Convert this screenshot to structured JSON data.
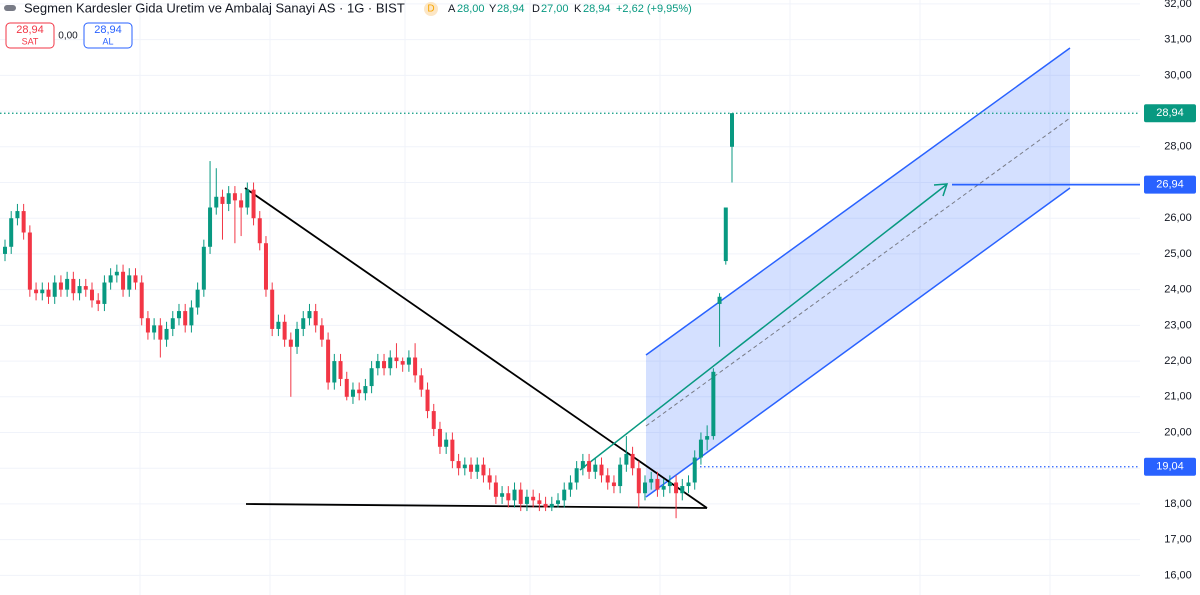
{
  "chart_data": {
    "type": "candlestick",
    "title": "Segmen Kardesler Gida Uretim ve Ambalaj Sanayi AS · 1G · BIST",
    "badge": "D",
    "ohlc_header": [
      {
        "key": "A",
        "value": "28,00"
      },
      {
        "key": "Y",
        "value": "28,94"
      },
      {
        "key": "D",
        "value": "27,00"
      },
      {
        "key": "K",
        "value": "28,94"
      }
    ],
    "change": "+2,62 (+9,95%)",
    "sell": {
      "price": "28,94",
      "label": "SAT"
    },
    "spread": "0,00",
    "buy": {
      "price": "28,94",
      "label": "AL"
    },
    "up_color": "#089981",
    "down_color": "#f23645",
    "ylim": [
      15.45,
      32.11
    ],
    "yticks": [
      {
        "value": 16,
        "label": "16,00"
      },
      {
        "value": 17,
        "label": "17,00"
      },
      {
        "value": 18,
        "label": "18,00"
      },
      {
        "value": 19,
        "label": "19,00"
      },
      {
        "value": 20,
        "label": "20,00"
      },
      {
        "value": 21,
        "label": "21,00"
      },
      {
        "value": 22,
        "label": "22,00"
      },
      {
        "value": 23,
        "label": "23,00"
      },
      {
        "value": 24,
        "label": "24,00"
      },
      {
        "value": 25,
        "label": "25,00"
      },
      {
        "value": 26,
        "label": "26,00"
      },
      {
        "value": 27,
        "label": "27,00"
      },
      {
        "value": 28,
        "label": "28,00"
      },
      {
        "value": 29,
        "label": "29,00"
      },
      {
        "value": 30,
        "label": "30,00"
      },
      {
        "value": 31,
        "label": "31,00"
      },
      {
        "value": 32,
        "label": "32,00"
      }
    ],
    "grid": true,
    "price_lines": [
      {
        "value": 28.94,
        "label": "28,94",
        "color": "#089981"
      },
      {
        "value": 26.94,
        "label": "26,94",
        "color": "#2962ff"
      },
      {
        "value": 19.04,
        "label": "19,04",
        "color": "#2962ff"
      }
    ],
    "open": [
      25.0,
      25.2,
      26.0,
      26.2,
      25.6,
      24.0,
      23.9,
      24.0,
      23.8,
      24.2,
      24.0,
      24.3,
      23.9,
      24.1,
      24.0,
      23.7,
      23.6,
      24.2,
      24.4,
      24.5,
      24.0,
      24.4,
      24.2,
      23.2,
      22.8,
      23.0,
      22.6,
      22.9,
      23.2,
      23.4,
      23.0,
      23.5,
      24.0,
      25.2,
      26.3,
      26.6,
      26.4,
      26.7,
      26.5,
      26.3,
      26.8,
      26.0,
      25.3,
      24.0,
      22.9,
      23.1,
      22.6,
      22.4,
      22.9,
      23.2,
      23.4,
      23.0,
      22.6,
      21.4,
      22.0,
      21.5,
      21.0,
      21.2,
      21.1,
      21.3,
      21.8,
      22.0,
      21.8,
      22.1,
      22.0,
      21.9,
      22.1,
      21.6,
      21.2,
      20.6,
      20.1,
      19.6,
      19.8,
      19.2,
      19.0,
      19.1,
      18.9,
      19.1,
      18.8,
      18.6,
      18.2,
      18.3,
      18.1,
      18.4,
      18.0,
      18.2,
      18.1,
      18.0,
      17.9,
      18.0,
      18.1,
      18.4,
      18.6,
      19.0,
      19.2,
      18.9,
      19.1,
      18.8,
      18.6,
      18.5,
      19.1,
      19.4,
      19.0,
      18.3,
      18.6,
      18.7,
      18.4,
      18.5,
      18.6,
      18.3,
      18.5,
      18.6,
      19.3,
      19.8,
      19.9,
      23.6,
      24.8,
      28.0
    ],
    "high": [
      25.4,
      26.2,
      26.4,
      26.4,
      25.8,
      24.2,
      24.2,
      24.2,
      24.4,
      24.4,
      24.5,
      24.5,
      24.3,
      24.3,
      24.2,
      23.9,
      24.4,
      24.6,
      24.7,
      24.7,
      24.6,
      24.6,
      24.4,
      23.4,
      23.2,
      23.2,
      23.1,
      23.4,
      23.6,
      23.6,
      23.7,
      24.2,
      25.4,
      27.6,
      27.4,
      26.8,
      26.9,
      26.9,
      26.7,
      27.0,
      27.0,
      26.2,
      25.5,
      24.2,
      23.3,
      23.3,
      22.8,
      23.1,
      23.4,
      23.6,
      23.6,
      23.2,
      22.8,
      22.2,
      22.2,
      21.7,
      21.4,
      21.4,
      21.5,
      22.0,
      22.2,
      22.2,
      22.3,
      22.5,
      22.1,
      22.3,
      22.5,
      21.8,
      21.4,
      20.8,
      20.3,
      20.0,
      20.0,
      19.4,
      19.3,
      19.3,
      19.3,
      19.3,
      19.0,
      18.8,
      18.5,
      18.5,
      18.6,
      18.6,
      18.4,
      18.4,
      18.3,
      18.2,
      18.2,
      18.3,
      18.6,
      18.8,
      19.2,
      19.4,
      19.4,
      19.3,
      19.3,
      19.0,
      18.8,
      19.3,
      19.9,
      19.6,
      19.2,
      18.8,
      18.9,
      18.9,
      18.7,
      18.8,
      18.8,
      18.7,
      18.8,
      19.5,
      20.0,
      20.2,
      21.8,
      23.9,
      26.3,
      28.94
    ],
    "low": [
      24.8,
      25.0,
      25.8,
      25.4,
      23.8,
      23.7,
      23.7,
      23.6,
      23.6,
      23.8,
      23.8,
      23.7,
      23.7,
      23.8,
      23.5,
      23.4,
      23.4,
      24.0,
      24.2,
      23.8,
      23.8,
      24.0,
      23.0,
      22.6,
      22.6,
      22.1,
      22.4,
      22.7,
      23.0,
      22.8,
      22.8,
      23.3,
      23.8,
      25.0,
      26.1,
      25.4,
      26.2,
      25.3,
      25.5,
      26.1,
      25.8,
      25.1,
      23.8,
      22.7,
      22.7,
      22.4,
      21.0,
      22.2,
      22.7,
      23.0,
      22.8,
      22.4,
      21.2,
      21.2,
      21.3,
      20.9,
      20.8,
      20.9,
      20.9,
      21.1,
      21.6,
      21.6,
      21.6,
      21.8,
      21.7,
      21.7,
      21.4,
      21.0,
      20.4,
      19.9,
      19.4,
      19.4,
      19.0,
      18.8,
      18.8,
      18.7,
      18.7,
      18.6,
      18.4,
      18.0,
      18.0,
      17.9,
      17.9,
      17.8,
      17.8,
      17.9,
      17.8,
      17.8,
      17.8,
      17.9,
      17.9,
      18.2,
      18.4,
      18.8,
      18.7,
      18.7,
      18.6,
      18.4,
      18.3,
      18.3,
      18.9,
      18.8,
      17.9,
      18.1,
      18.4,
      18.2,
      18.2,
      18.3,
      17.6,
      18.1,
      18.3,
      18.4,
      19.1,
      19.5,
      19.8,
      22.4,
      24.7,
      27.0
    ],
    "close": [
      25.2,
      26.0,
      26.2,
      25.6,
      24.0,
      23.9,
      24.0,
      23.8,
      24.2,
      24.0,
      24.3,
      23.9,
      24.1,
      24.0,
      23.7,
      23.6,
      24.2,
      24.4,
      24.5,
      24.0,
      24.4,
      24.2,
      23.2,
      22.8,
      23.0,
      22.6,
      22.9,
      23.2,
      23.4,
      23.0,
      23.5,
      24.0,
      25.2,
      26.3,
      26.6,
      26.4,
      26.7,
      26.5,
      26.3,
      26.8,
      26.0,
      25.3,
      24.0,
      22.9,
      23.1,
      22.6,
      22.4,
      22.9,
      23.2,
      23.4,
      23.0,
      22.6,
      21.4,
      22.0,
      21.5,
      21.0,
      21.2,
      21.1,
      21.3,
      21.8,
      22.0,
      21.8,
      22.1,
      22.0,
      21.9,
      22.1,
      21.6,
      21.2,
      20.6,
      20.1,
      19.6,
      19.8,
      19.2,
      19.0,
      19.1,
      18.9,
      19.1,
      18.8,
      18.6,
      18.2,
      18.3,
      18.1,
      18.4,
      18.0,
      18.2,
      18.1,
      18.0,
      17.9,
      18.0,
      18.1,
      18.4,
      18.6,
      19.0,
      19.2,
      18.9,
      19.1,
      18.8,
      18.6,
      18.5,
      19.1,
      19.4,
      19.0,
      18.3,
      18.6,
      18.7,
      18.4,
      18.5,
      18.6,
      18.3,
      18.5,
      18.6,
      19.3,
      19.8,
      19.9,
      21.7,
      23.8,
      26.3,
      28.94
    ]
  }
}
